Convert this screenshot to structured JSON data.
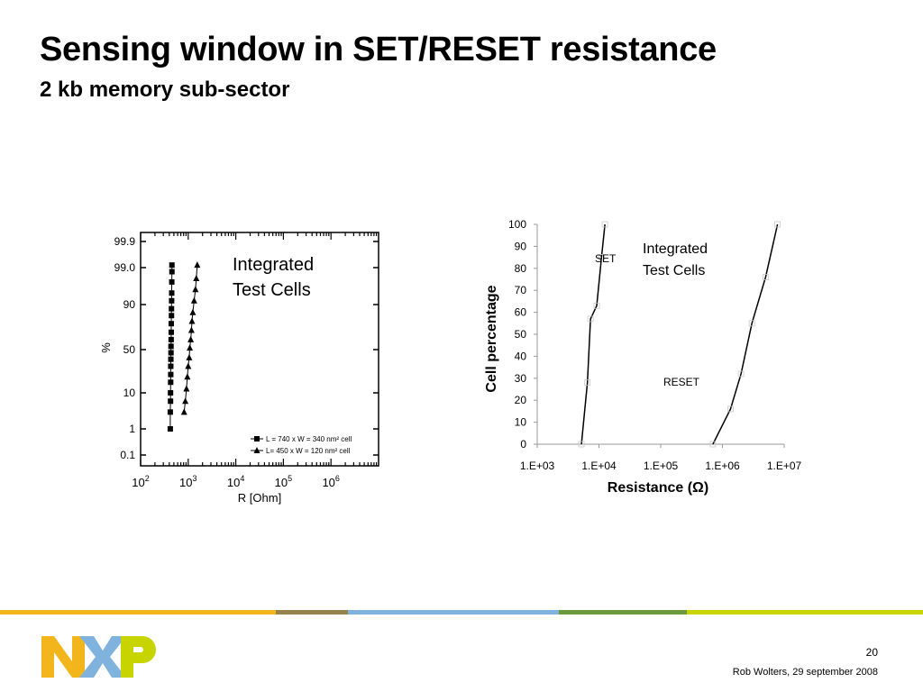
{
  "slide": {
    "title": "Sensing window in SET/RESET resistance",
    "subtitle": "2 kb memory sub-sector",
    "page_number": "20",
    "footer": "Rob Wolters, 29 september 2008",
    "footer_colors": [
      "#f2b51c",
      "#94844c",
      "#7fb3de",
      "#6e9a3e",
      "#c8d400"
    ]
  },
  "chart_data": [
    {
      "type": "scatter",
      "title": "",
      "annotation": [
        "Integrated",
        "Test Cells"
      ],
      "xlabel": "R [Ohm]",
      "ylabel": "%",
      "x_scale": "log",
      "xlim": [
        100,
        10000000
      ],
      "x_ticks": [
        {
          "base": "10",
          "exp": "2"
        },
        {
          "base": "10",
          "exp": "3"
        },
        {
          "base": "10",
          "exp": "4"
        },
        {
          "base": "10",
          "exp": "5"
        },
        {
          "base": "10",
          "exp": "6"
        }
      ],
      "y_scale": "probability",
      "y_ticks": [
        "99.9",
        "99.0",
        "90",
        "50",
        "10",
        "1",
        "0.1"
      ],
      "series": [
        {
          "name": "L = 740 x W = 340 nm² cell",
          "marker": "square",
          "points": [
            [
              420,
              1
            ],
            [
              420,
              3
            ],
            [
              425,
              6
            ],
            [
              425,
              10
            ],
            [
              428,
              16
            ],
            [
              430,
              22
            ],
            [
              430,
              30
            ],
            [
              432,
              38
            ],
            [
              435,
              46
            ],
            [
              435,
              54
            ],
            [
              438,
              62
            ],
            [
              440,
              70
            ],
            [
              440,
              78
            ],
            [
              445,
              84
            ],
            [
              445,
              88
            ],
            [
              448,
              92
            ],
            [
              450,
              95
            ],
            [
              452,
              97.5
            ],
            [
              455,
              98.7
            ],
            [
              455,
              99.2
            ]
          ]
        },
        {
          "name": "L= 450 x W = 120 nm² cell",
          "marker": "triangle",
          "points": [
            [
              820,
              3
            ],
            [
              870,
              6
            ],
            [
              920,
              12
            ],
            [
              960,
              20
            ],
            [
              1000,
              30
            ],
            [
              1050,
              40
            ],
            [
              1080,
              52
            ],
            [
              1130,
              62
            ],
            [
              1170,
              72
            ],
            [
              1200,
              80
            ],
            [
              1250,
              86
            ],
            [
              1330,
              92
            ],
            [
              1420,
              96
            ],
            [
              1480,
              98
            ],
            [
              1550,
              99.2
            ]
          ]
        }
      ]
    },
    {
      "type": "line",
      "title": "",
      "annotation": [
        "Integrated",
        "Test Cells"
      ],
      "xlabel": "Resistance (Ω)",
      "ylabel": "Cell percentage",
      "x_scale": "log",
      "x_ticks": [
        "1.E+03",
        "1.E+04",
        "1.E+05",
        "1.E+06",
        "1.E+07"
      ],
      "xlim": [
        1000,
        10000000
      ],
      "ylim": [
        0,
        100
      ],
      "y_ticks": [
        0,
        10,
        20,
        30,
        40,
        50,
        60,
        70,
        80,
        90,
        100
      ],
      "series": [
        {
          "name": "SET",
          "points": [
            [
              5200,
              0
            ],
            [
              6500,
              28
            ],
            [
              7300,
              57
            ],
            [
              9200,
              63
            ],
            [
              11000,
              85
            ],
            [
              12500,
              100
            ]
          ]
        },
        {
          "name": "RESET",
          "points": [
            [
              700000,
              0
            ],
            [
              1350000,
              16
            ],
            [
              2000000,
              32
            ],
            [
              3000000,
              55
            ],
            [
              5000000,
              76
            ],
            [
              7800000,
              100
            ]
          ]
        }
      ]
    }
  ]
}
